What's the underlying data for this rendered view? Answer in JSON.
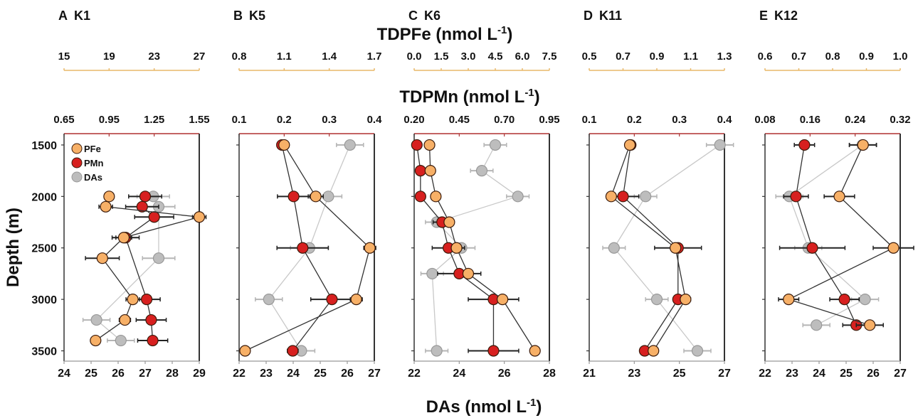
{
  "chart_data": {
    "type": "scatter",
    "title_top": "TDPFe (nmol L-1)",
    "title_mid": "TDPMn (nmol L-1)",
    "xlabel": "DAs (nmol L-1)",
    "ylabel": "Depth (m)",
    "ylim": [
      1390,
      3600
    ],
    "yticks": [
      1500,
      2000,
      2500,
      3000,
      3500
    ],
    "legend": {
      "placement": "top-left of panel A",
      "entries": [
        {
          "key": "PFe",
          "label": "PFe",
          "color": "#f7b067"
        },
        {
          "key": "PMn",
          "label": "PMn",
          "color": "#d7201f"
        },
        {
          "key": "DAs",
          "label": "DAs",
          "color": "#bdbdbd"
        }
      ]
    },
    "panels": [
      {
        "id": "A",
        "title": "A  K1",
        "fe_axis": {
          "range": [
            15,
            27
          ],
          "ticks": [
            "15",
            "19",
            "23",
            "27"
          ]
        },
        "mn_axis": {
          "range": [
            0.65,
            1.55
          ],
          "ticks": [
            "0.65",
            "0.95",
            "1.25",
            "1.55"
          ]
        },
        "das_axis": {
          "range": [
            24,
            29
          ],
          "ticks": [
            "24",
            "25",
            "26",
            "27",
            "28",
            "29"
          ]
        },
        "series": {
          "PFe": {
            "depth": [
              2000,
              2100,
              2200,
              2400,
              2600,
              3000,
              3200,
              3400
            ],
            "value": [
              19.0,
              18.7,
              27.0,
              20.3,
              18.4,
              21.1,
              20.4,
              17.8
            ],
            "err": [
              0.4,
              0.6,
              0.6,
              0.7,
              1.5,
              0.6,
              0.5,
              0.4
            ]
          },
          "PMn": {
            "depth": [
              2000,
              2100,
              2200,
              2400,
              3000,
              3200,
              3400
            ],
            "value": [
              1.19,
              1.17,
              1.25,
              1.06,
              1.2,
              1.23,
              1.24
            ],
            "err": [
              0.11,
              0.11,
              0.13,
              0.09,
              0.09,
              0.1,
              0.1
            ]
          },
          "DAs": {
            "depth": [
              2000,
              2100,
              2600,
              3200,
              3400
            ],
            "value": [
              27.3,
              27.5,
              27.5,
              25.2,
              26.1
            ],
            "err": [
              0.6,
              0.6,
              0.6,
              0.5,
              0.5
            ]
          }
        }
      },
      {
        "id": "B",
        "title": "B  K5",
        "fe_axis": {
          "range": [
            0.8,
            1.7
          ],
          "ticks": [
            "0.8",
            "1.1",
            "1.4",
            "1.7"
          ]
        },
        "mn_axis": {
          "range": [
            0.1,
            0.4
          ],
          "ticks": [
            "0.1",
            "0.2",
            "0.3",
            "0.4"
          ]
        },
        "das_axis": {
          "range": [
            22,
            27
          ],
          "ticks": [
            "22",
            "23",
            "24",
            "25",
            "26",
            "27"
          ]
        },
        "series": {
          "PFe": {
            "depth": [
              1500,
              2000,
              2500,
              3000,
              3500
            ],
            "value": [
              1.1,
              1.31,
              1.67,
              1.58,
              0.84
            ],
            "err": [
              0.03,
              0.05,
              0.04,
              0.04,
              0.03
            ]
          },
          "PMn": {
            "depth": [
              1500,
              2000,
              2500,
              3000,
              3500
            ],
            "value": [
              0.195,
              0.221,
              0.241,
              0.306,
              0.219
            ],
            "err": [
              0.011,
              0.036,
              0.057,
              0.047,
              0.012
            ]
          },
          "DAs": {
            "depth": [
              1500,
              2000,
              2500,
              3000,
              3500
            ],
            "value": [
              26.1,
              25.3,
              24.6,
              23.1,
              24.3
            ],
            "err": [
              0.5,
              0.5,
              0.7,
              0.5,
              0.5
            ]
          }
        }
      },
      {
        "id": "C",
        "title": "C  K6",
        "fe_axis": {
          "range": [
            0.0,
            7.5
          ],
          "ticks": [
            "0.0",
            "1.5",
            "3.0",
            "4.5",
            "6.0",
            "7.5"
          ]
        },
        "mn_axis": {
          "range": [
            0.2,
            0.95
          ],
          "ticks": [
            "0.20",
            "0.45",
            "0.70",
            "0.95"
          ]
        },
        "das_axis": {
          "range": [
            22,
            28
          ],
          "ticks": [
            "22",
            "24",
            "26",
            "28"
          ]
        },
        "series": {
          "PFe": {
            "depth": [
              1500,
              1750,
              2000,
              2250,
              2500,
              2750,
              3000,
              3500
            ],
            "value": [
              0.85,
              0.9,
              1.2,
              1.95,
              2.35,
              3.0,
              4.9,
              6.7
            ],
            "err": [
              0.05,
              0.05,
              0.06,
              0.1,
              0.1,
              0.1,
              0.1,
              0.1
            ]
          },
          "PMn": {
            "depth": [
              1500,
              1750,
              2000,
              2250,
              2500,
              2750,
              3000,
              3500
            ],
            "value": [
              0.215,
              0.235,
              0.235,
              0.355,
              0.39,
              0.45,
              0.64,
              0.64
            ],
            "err": [
              0.01,
              0.01,
              0.02,
              0.05,
              0.09,
              0.12,
              0.14,
              0.14
            ]
          },
          "DAs": {
            "depth": [
              1500,
              1750,
              2000,
              2250,
              2500,
              2750,
              3500
            ],
            "value": [
              25.6,
              25.0,
              26.6,
              23.0,
              24.1,
              22.8,
              23.0
            ],
            "err": [
              0.5,
              0.5,
              0.5,
              0.5,
              0.6,
              0.5,
              0.5
            ]
          }
        }
      },
      {
        "id": "D",
        "title": "D  K11",
        "fe_axis": {
          "range": [
            0.5,
            1.3
          ],
          "ticks": [
            "0.5",
            "0.7",
            "0.9",
            "1.1",
            "1.3"
          ]
        },
        "mn_axis": {
          "range": [
            0.1,
            0.4
          ],
          "ticks": [
            "0.1",
            "0.2",
            "0.3",
            "0.4"
          ]
        },
        "das_axis": {
          "range": [
            21,
            27
          ],
          "ticks": [
            "21",
            "23",
            "25",
            "27"
          ]
        },
        "series": {
          "PFe": {
            "depth": [
              1500,
              2000,
              2500,
              3000,
              3500
            ],
            "value": [
              0.74,
              0.63,
              1.01,
              1.07,
              0.88
            ],
            "err": [
              0.02,
              0.02,
              0.02,
              0.03,
              0.02
            ]
          },
          "PMn": {
            "depth": [
              1500,
              2000,
              2500,
              3000,
              3500
            ],
            "value": [
              0.192,
              0.175,
              0.297,
              0.297,
              0.223
            ],
            "err": [
              0.008,
              0.035,
              0.052,
              0.008,
              0.01
            ]
          },
          "DAs": {
            "depth": [
              1500,
              2000,
              2500,
              3000,
              3500
            ],
            "value": [
              26.8,
              23.5,
              22.1,
              24.0,
              25.8
            ],
            "err": [
              0.6,
              0.5,
              0.5,
              0.5,
              0.6
            ]
          }
        }
      },
      {
        "id": "E",
        "title": "E  K12",
        "fe_axis": {
          "range": [
            0.6,
            1.0
          ],
          "ticks": [
            "0.6",
            "0.7",
            "0.8",
            "0.9",
            "1.0"
          ]
        },
        "mn_axis": {
          "range": [
            0.08,
            0.32
          ],
          "ticks": [
            "0.08",
            "0.16",
            "0.24",
            "0.32"
          ]
        },
        "das_axis": {
          "range": [
            22,
            27
          ],
          "ticks": [
            "22",
            "23",
            "24",
            "25",
            "26",
            "27"
          ]
        },
        "series": {
          "PFe": {
            "depth": [
              1500,
              2000,
              2500,
              3000,
              3250
            ],
            "value": [
              0.89,
              0.82,
              0.98,
              0.67,
              0.91
            ],
            "err": [
              0.04,
              0.045,
              0.06,
              0.03,
              0.04
            ]
          },
          "PMn": {
            "depth": [
              1500,
              2000,
              2500,
              3000,
              3250
            ],
            "value": [
              0.15,
              0.135,
              0.164,
              0.221,
              0.242
            ],
            "err": [
              0.018,
              0.022,
              0.058,
              0.026,
              0.024
            ]
          },
          "DAs": {
            "depth": [
              1500,
              2000,
              2500,
              3000,
              3250
            ],
            "value": [
              25.6,
              22.9,
              23.6,
              25.7,
              23.9
            ],
            "err": [
              0.5,
              0.5,
              0.5,
              0.5,
              0.5
            ]
          }
        }
      }
    ]
  }
}
